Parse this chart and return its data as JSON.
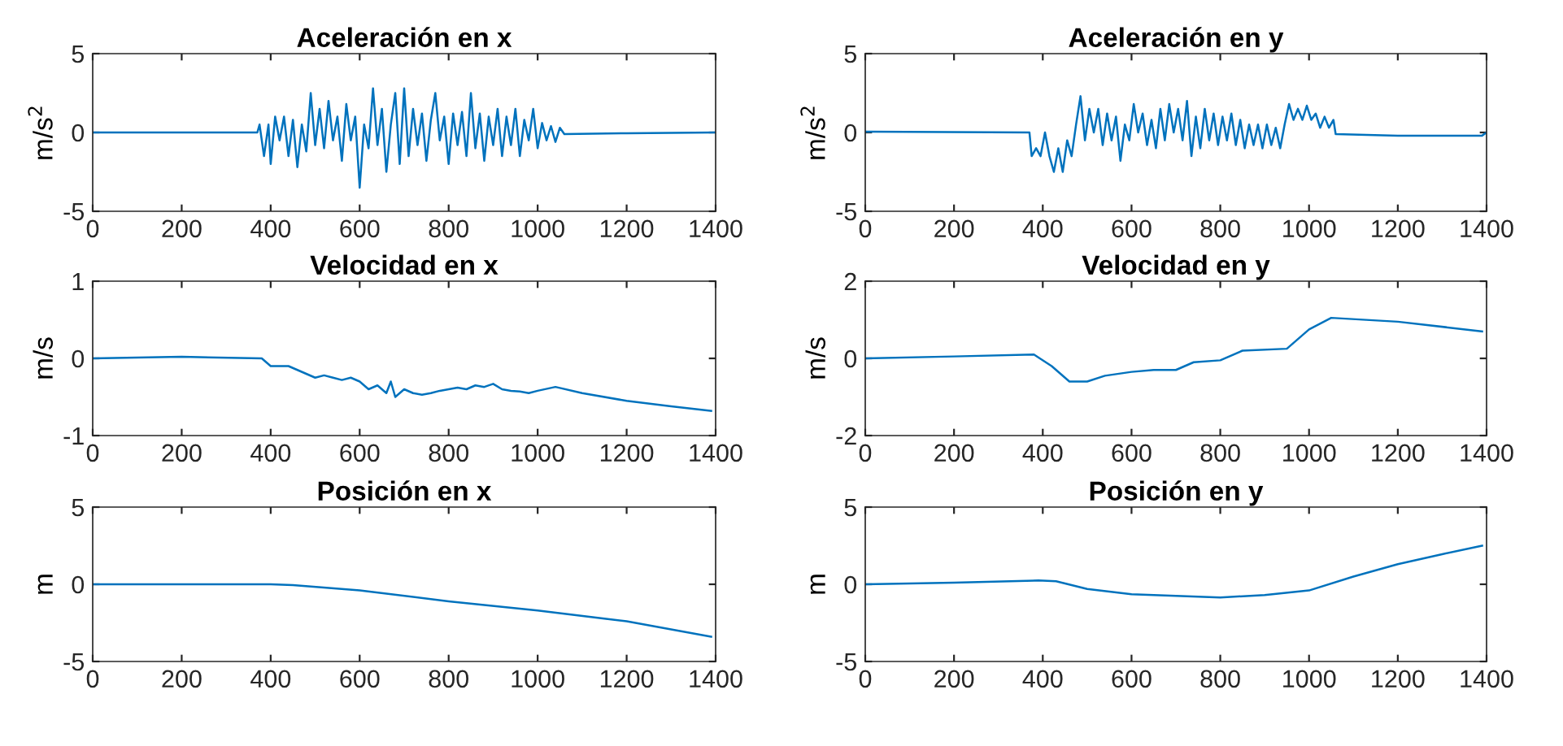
{
  "chart_data": [
    {
      "type": "line",
      "title": "Aceleración en x",
      "ylabel": "m/s$^{2}$",
      "xlim": [
        0,
        1400
      ],
      "xticks": [
        0,
        200,
        400,
        600,
        800,
        1000,
        1200,
        1400
      ],
      "ylim": [
        -5,
        5
      ],
      "yticks": [
        -5,
        0,
        5
      ],
      "grid": false,
      "series": [
        {
          "color": "#0072bd",
          "x": [
            0,
            370,
            375,
            385,
            395,
            400,
            410,
            420,
            430,
            440,
            450,
            460,
            470,
            480,
            490,
            500,
            510,
            520,
            530,
            540,
            550,
            560,
            570,
            580,
            590,
            600,
            610,
            620,
            630,
            640,
            650,
            660,
            670,
            680,
            690,
            700,
            710,
            720,
            730,
            740,
            750,
            760,
            770,
            780,
            790,
            800,
            810,
            820,
            830,
            840,
            850,
            860,
            870,
            880,
            890,
            900,
            910,
            920,
            930,
            940,
            950,
            960,
            970,
            980,
            990,
            1000,
            1010,
            1020,
            1030,
            1040,
            1050,
            1060,
            1200,
            1400
          ],
          "values": [
            0,
            0,
            0.5,
            -1.5,
            0.5,
            -2,
            1,
            -0.5,
            1,
            -1.5,
            0.8,
            -2.2,
            0.5,
            -1.2,
            2.5,
            -0.8,
            1.5,
            -1,
            2,
            -0.5,
            1,
            -1.8,
            1.8,
            -0.5,
            1,
            -3.5,
            0.5,
            -1,
            2.8,
            -0.8,
            1.5,
            -2.5,
            0.5,
            2.5,
            -2,
            2.8,
            -1.5,
            1.5,
            -0.8,
            1.2,
            -1.8,
            0.8,
            2.5,
            -0.5,
            1,
            -2,
            1.2,
            -0.8,
            1.3,
            -1.5,
            2.5,
            -1,
            1.2,
            -1.8,
            1,
            -0.8,
            1.5,
            -1.5,
            1,
            -0.8,
            1.5,
            -1.5,
            0.8,
            -0.5,
            1.5,
            -1,
            0.6,
            -0.5,
            0.4,
            -0.6,
            0.3,
            -0.1,
            -0.05,
            0
          ]
        }
      ]
    },
    {
      "type": "line",
      "title": "Aceleración en y",
      "ylabel": "m/s$^{2}$",
      "xlim": [
        0,
        1400
      ],
      "xticks": [
        0,
        200,
        400,
        600,
        800,
        1000,
        1200,
        1400
      ],
      "ylim": [
        -5,
        5
      ],
      "yticks": [
        -5,
        0,
        5
      ],
      "grid": false,
      "series": [
        {
          "color": "#0072bd",
          "x": [
            0,
            370,
            375,
            385,
            395,
            405,
            415,
            425,
            435,
            445,
            455,
            465,
            475,
            485,
            495,
            505,
            515,
            525,
            535,
            545,
            555,
            565,
            575,
            585,
            595,
            605,
            615,
            625,
            635,
            645,
            655,
            665,
            675,
            685,
            695,
            705,
            715,
            725,
            735,
            745,
            755,
            765,
            775,
            785,
            795,
            805,
            815,
            825,
            835,
            845,
            855,
            865,
            875,
            885,
            895,
            905,
            915,
            925,
            935,
            945,
            955,
            965,
            975,
            985,
            995,
            1005,
            1015,
            1025,
            1035,
            1045,
            1055,
            1060,
            1200,
            1390,
            1400
          ],
          "values": [
            0.05,
            0,
            -1.5,
            -1,
            -1.5,
            0,
            -1.5,
            -2.5,
            -1,
            -2.5,
            -0.5,
            -1.5,
            0.5,
            2.3,
            -0.5,
            1.5,
            0,
            1.5,
            -0.8,
            1.2,
            -0.5,
            1,
            -1.8,
            0.5,
            -0.5,
            1.8,
            0,
            1.2,
            -0.8,
            0.8,
            -1,
            1.5,
            -0.5,
            1.8,
            0,
            1.5,
            -0.5,
            2,
            -1.5,
            1,
            -1,
            1.5,
            -0.5,
            1.2,
            -0.8,
            1,
            -0.5,
            1.2,
            -0.8,
            0.8,
            -1,
            0.5,
            -0.8,
            0.5,
            -1,
            0.5,
            -0.8,
            0.3,
            -1,
            0.5,
            1.8,
            0.8,
            1.5,
            0.8,
            1.7,
            0.8,
            1.2,
            0.3,
            1,
            0.3,
            0.8,
            -0.1,
            -0.2,
            -0.2,
            0
          ]
        }
      ]
    },
    {
      "type": "line",
      "title": "Velocidad en x",
      "ylabel": "m/s",
      "xlim": [
        0,
        1400
      ],
      "xticks": [
        0,
        200,
        400,
        600,
        800,
        1000,
        1200,
        1400
      ],
      "ylim": [
        -1,
        1
      ],
      "yticks": [
        -1,
        0,
        1
      ],
      "grid": false,
      "series": [
        {
          "color": "#0072bd",
          "x": [
            0,
            200,
            380,
            400,
            420,
            440,
            460,
            480,
            500,
            520,
            540,
            560,
            580,
            600,
            620,
            640,
            660,
            670,
            680,
            700,
            720,
            740,
            760,
            780,
            800,
            820,
            840,
            860,
            880,
            900,
            920,
            940,
            960,
            980,
            1000,
            1040,
            1100,
            1200,
            1300,
            1390
          ],
          "values": [
            0,
            0.02,
            0,
            -0.1,
            -0.1,
            -0.1,
            -0.15,
            -0.2,
            -0.25,
            -0.22,
            -0.25,
            -0.28,
            -0.25,
            -0.3,
            -0.4,
            -0.35,
            -0.45,
            -0.3,
            -0.5,
            -0.4,
            -0.45,
            -0.47,
            -0.45,
            -0.42,
            -0.4,
            -0.38,
            -0.4,
            -0.35,
            -0.37,
            -0.33,
            -0.4,
            -0.42,
            -0.43,
            -0.45,
            -0.42,
            -0.37,
            -0.45,
            -0.55,
            -0.62,
            -0.68
          ]
        }
      ]
    },
    {
      "type": "line",
      "title": "Velocidad en y",
      "ylabel": "m/s",
      "xlim": [
        0,
        1400
      ],
      "xticks": [
        0,
        200,
        400,
        600,
        800,
        1000,
        1200,
        1400
      ],
      "ylim": [
        -2,
        2
      ],
      "yticks": [
        -2,
        0,
        2
      ],
      "grid": false,
      "series": [
        {
          "color": "#0072bd",
          "x": [
            0,
            200,
            380,
            420,
            460,
            500,
            540,
            600,
            650,
            700,
            740,
            800,
            850,
            950,
            1000,
            1050,
            1200,
            1390
          ],
          "values": [
            0,
            0.05,
            0.1,
            -0.2,
            -0.6,
            -0.6,
            -0.45,
            -0.35,
            -0.3,
            -0.3,
            -0.1,
            -0.05,
            0.2,
            0.25,
            0.75,
            1.05,
            0.95,
            0.7
          ]
        }
      ]
    },
    {
      "type": "line",
      "title": "Posición en x",
      "ylabel": "m",
      "xlim": [
        0,
        1400
      ],
      "xticks": [
        0,
        200,
        400,
        600,
        800,
        1000,
        1200,
        1400
      ],
      "ylim": [
        -5,
        5
      ],
      "yticks": [
        -5,
        0,
        5
      ],
      "grid": false,
      "series": [
        {
          "color": "#0072bd",
          "x": [
            0,
            400,
            450,
            600,
            800,
            1000,
            1200,
            1390
          ],
          "values": [
            0,
            0,
            -0.05,
            -0.4,
            -1.1,
            -1.7,
            -2.4,
            -3.4
          ]
        }
      ]
    },
    {
      "type": "line",
      "title": "Posición en y",
      "ylabel": "m",
      "xlim": [
        0,
        1400
      ],
      "xticks": [
        0,
        200,
        400,
        600,
        800,
        1000,
        1200,
        1400
      ],
      "ylim": [
        -5,
        5
      ],
      "yticks": [
        -5,
        0,
        5
      ],
      "grid": false,
      "series": [
        {
          "color": "#0072bd",
          "x": [
            0,
            200,
            390,
            430,
            500,
            600,
            800,
            900,
            1000,
            1100,
            1200,
            1300,
            1390
          ],
          "values": [
            0,
            0.1,
            0.25,
            0.2,
            -0.3,
            -0.65,
            -0.85,
            -0.7,
            -0.4,
            0.5,
            1.3,
            1.95,
            2.5
          ]
        }
      ]
    }
  ]
}
